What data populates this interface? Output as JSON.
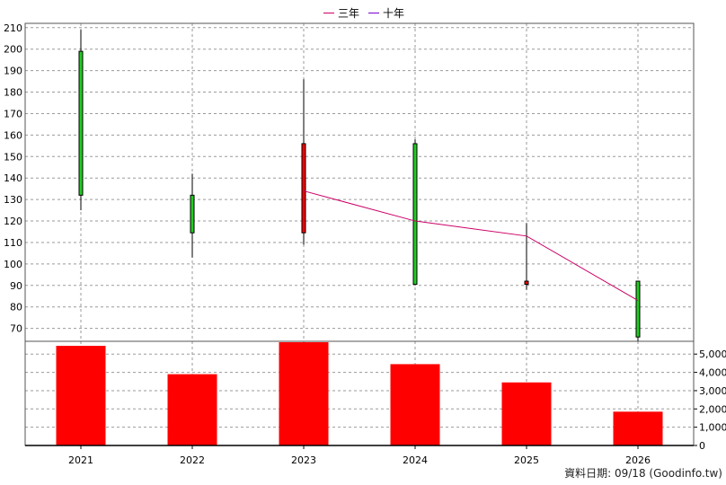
{
  "legend": [
    {
      "label": "三年",
      "color": "#cc0066"
    },
    {
      "label": "十年",
      "color": "#7a00cc"
    }
  ],
  "footer_text": "資料日期: 09/18  (Goodinfo.tw)",
  "chart_data": [
    {
      "type": "candlestick",
      "x": [
        "2021",
        "2022",
        "2023",
        "2024",
        "2025",
        "2026"
      ],
      "ylim": [
        64,
        212
      ],
      "yticks": [
        70,
        80,
        90,
        100,
        110,
        120,
        130,
        140,
        150,
        160,
        170,
        180,
        190,
        200,
        210
      ],
      "grid": true,
      "candles": [
        {
          "x": "2021",
          "open": 132,
          "close": 199,
          "high": 209,
          "low": 125,
          "color": "#22cc22"
        },
        {
          "x": "2022",
          "open": 114.5,
          "close": 132,
          "high": 142,
          "low": 103,
          "color": "#22cc22"
        },
        {
          "x": "2023",
          "open": 156,
          "close": 114.5,
          "high": 186,
          "low": 109,
          "color": "#ff0000"
        },
        {
          "x": "2024",
          "open": 90.5,
          "close": 156,
          "high": 158,
          "low": 90.5,
          "color": "#22cc22"
        },
        {
          "x": "2025",
          "open": 92,
          "close": 90.5,
          "high": 119,
          "low": 88,
          "color": "#ff0000"
        },
        {
          "x": "2026",
          "open": 66,
          "close": 92,
          "high": 92,
          "low": 64,
          "color": "#22cc22"
        }
      ],
      "series": [
        {
          "name": "三年",
          "color": "#cc0066",
          "points": [
            {
              "x": "2023",
              "y": 134
            },
            {
              "x": "2024",
              "y": 120
            },
            {
              "x": "2025",
              "y": 113
            },
            {
              "x": "2026",
              "y": 83
            }
          ]
        }
      ]
    },
    {
      "type": "bar",
      "categories": [
        "2021",
        "2022",
        "2023",
        "2024",
        "2025",
        "2026"
      ],
      "values": [
        5450,
        3900,
        5650,
        4450,
        3450,
        1850
      ],
      "color": "#ff0000",
      "ylim": [
        0,
        5700
      ],
      "yticks": [
        0,
        1000,
        2000,
        3000,
        4000,
        5000
      ],
      "ytick_labels": [
        "0",
        "1,000",
        "2,000",
        "3,000",
        "4,000",
        "5,000"
      ],
      "grid": true
    }
  ]
}
